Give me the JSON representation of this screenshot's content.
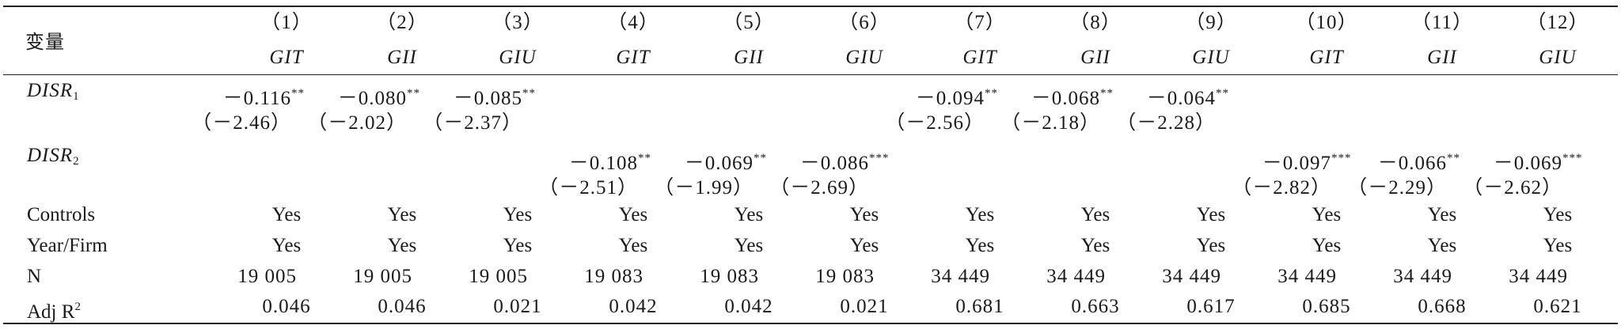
{
  "header": {
    "variable_label": "变量",
    "col_numbers": [
      "（1）",
      "（2）",
      "（3）",
      "（4）",
      "（5）",
      "（6）",
      "（7）",
      "（8）",
      "（9）",
      "（10）",
      "（11）",
      "（12）"
    ],
    "dep_vars": [
      "GIT",
      "GII",
      "GIU",
      "GIT",
      "GII",
      "GIU",
      "GIT",
      "GII",
      "GIU",
      "GIT",
      "GII",
      "GIU"
    ]
  },
  "rows": {
    "disr1": {
      "label": "DISR",
      "sub": "1",
      "coefs": [
        "－0.116",
        "－0.080",
        "－0.085",
        "",
        "",
        "",
        "－0.094",
        "－0.068",
        "－0.064",
        "",
        "",
        ""
      ],
      "stars": [
        "**",
        "**",
        "**",
        "",
        "",
        "",
        "**",
        "**",
        "**",
        "",
        "",
        ""
      ],
      "tstats": [
        "（－2.46）",
        "（－2.02）",
        "（－2.37）",
        "",
        "",
        "",
        "（－2.56）",
        "（－2.18）",
        "（－2.28）",
        "",
        "",
        ""
      ]
    },
    "disr2": {
      "label": "DISR",
      "sub": "2",
      "coefs": [
        "",
        "",
        "",
        "－0.108",
        "－0.069",
        "－0.086",
        "",
        "",
        "",
        "－0.097",
        "－0.066",
        "－0.069"
      ],
      "stars": [
        "",
        "",
        "",
        "**",
        "**",
        "***",
        "",
        "",
        "",
        "***",
        "**",
        "***"
      ],
      "tstats": [
        "",
        "",
        "",
        "（－2.51）",
        "（－1.99）",
        "（－2.69）",
        "",
        "",
        "",
        "（－2.82）",
        "（－2.29）",
        "（－2.62）"
      ]
    },
    "controls": {
      "label": "Controls",
      "values": [
        "Yes",
        "Yes",
        "Yes",
        "Yes",
        "Yes",
        "Yes",
        "Yes",
        "Yes",
        "Yes",
        "Yes",
        "Yes",
        "Yes"
      ]
    },
    "yearfirm": {
      "label": "Year/Firm",
      "values": [
        "Yes",
        "Yes",
        "Yes",
        "Yes",
        "Yes",
        "Yes",
        "Yes",
        "Yes",
        "Yes",
        "Yes",
        "Yes",
        "Yes"
      ]
    },
    "n": {
      "label": "N",
      "values": [
        "19 005",
        "19 005",
        "19 005",
        "19 083",
        "19 083",
        "19 083",
        "34 449",
        "34 449",
        "34 449",
        "34 449",
        "34 449",
        "34 449"
      ]
    },
    "adjr2": {
      "label": "Adj R",
      "sup": "2",
      "values": [
        "0.046",
        "0.046",
        "0.021",
        "0.042",
        "0.042",
        "0.021",
        "0.681",
        "0.663",
        "0.617",
        "0.685",
        "0.668",
        "0.621"
      ]
    }
  }
}
